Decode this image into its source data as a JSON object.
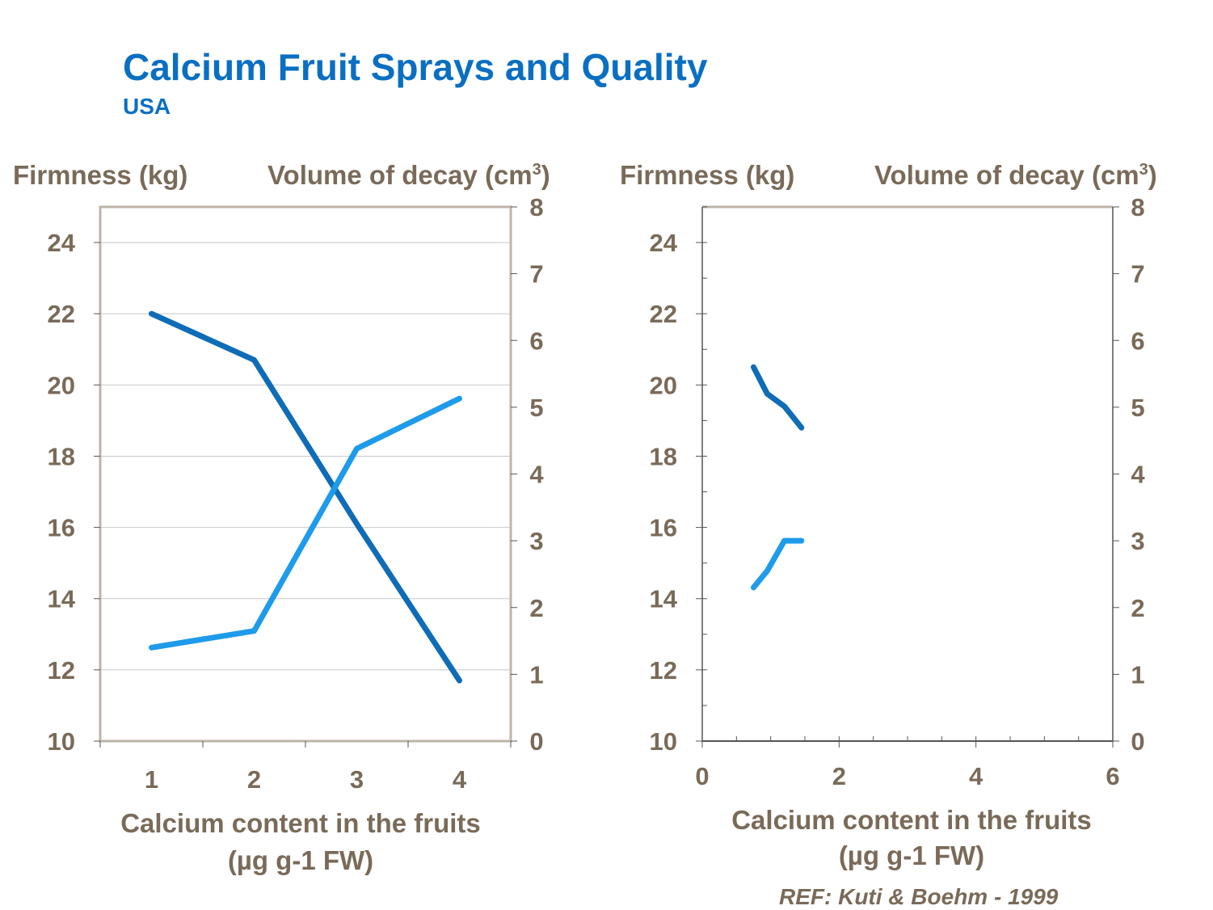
{
  "header": {
    "title": "Calcium Fruit Sprays and Quality",
    "subtitle": "USA"
  },
  "reference": "REF: Kuti & Boehm - 1999",
  "colors": {
    "title": "#0A6FC2",
    "label_text": "#7A6A58",
    "frame": "#BDB4A8",
    "gridline": "#C8C8C8",
    "firmness_series": "#0F6CB6",
    "decay_series": "#1E9BEA"
  },
  "chart_data": [
    {
      "type": "line",
      "left_axis_label": "Firmness (kg)",
      "right_axis_label_main": "Volume of decay (cm",
      "right_axis_label_sup": "3",
      "right_axis_label_close": ")",
      "xlabel_line1": "Calcium content in the fruits",
      "xlabel_line2": "(µg g-1 FW)",
      "xlim": [
        0.5,
        4.5
      ],
      "ylim_left": [
        10,
        25
      ],
      "ylim_right": [
        0,
        8
      ],
      "x_ticks": [
        "1",
        "2",
        "3",
        "4"
      ],
      "y_left_ticks": [
        "10",
        "12",
        "14",
        "16",
        "18",
        "20",
        "22",
        "24"
      ],
      "y_right_ticks": [
        "0",
        "1",
        "2",
        "3",
        "4",
        "5",
        "6",
        "7",
        "8"
      ],
      "grid": true,
      "series": [
        {
          "axis": "left",
          "color": "#0F6CB6",
          "x": [
            1,
            2,
            3,
            4
          ],
          "y": [
            22.0,
            20.7,
            16.1,
            11.7
          ]
        },
        {
          "axis": "right",
          "color": "#1E9BEA",
          "x": [
            1,
            2,
            3,
            4
          ],
          "y": [
            1.4,
            1.65,
            4.38,
            5.13
          ]
        }
      ]
    },
    {
      "type": "line",
      "left_axis_label": "Firmness (kg)",
      "right_axis_label_main": "Volume of decay (cm",
      "right_axis_label_sup": "3",
      "right_axis_label_close": ")",
      "xlabel_line1": "Calcium content in the fruits",
      "xlabel_line2": "(µg g-1 FW)",
      "xlim": [
        0,
        6
      ],
      "ylim_left": [
        10,
        25
      ],
      "ylim_right": [
        0,
        8
      ],
      "x_ticks": [
        "0",
        "2",
        "4",
        "6"
      ],
      "y_left_ticks": [
        "10",
        "12",
        "14",
        "16",
        "18",
        "20",
        "22",
        "24"
      ],
      "y_right_ticks": [
        "0",
        "1",
        "2",
        "3",
        "4",
        "5",
        "6",
        "7",
        "8"
      ],
      "grid": false,
      "series": [
        {
          "axis": "left",
          "color": "#0F6CB6",
          "x": [
            0.75,
            0.95,
            1.2,
            1.45
          ],
          "y": [
            20.5,
            19.75,
            19.4,
            18.8
          ]
        },
        {
          "axis": "right",
          "color": "#1E9BEA",
          "x": [
            0.75,
            0.95,
            1.2,
            1.45
          ],
          "y": [
            2.3,
            2.55,
            3.0,
            3.0
          ]
        }
      ]
    }
  ]
}
